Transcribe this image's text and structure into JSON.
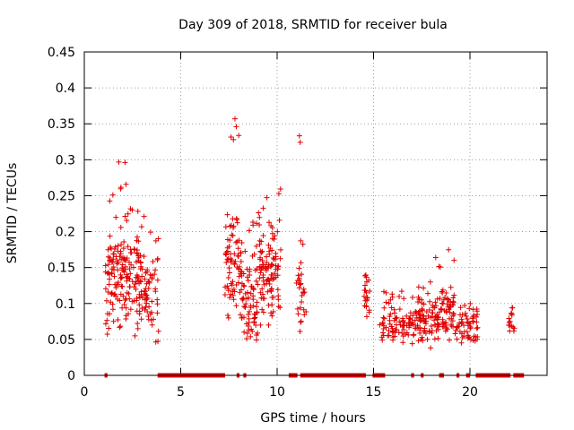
{
  "chart_data": {
    "type": "scatter",
    "title": "Day 309 of 2018, SRMTID for receiver bula",
    "xlabel": "GPS time / hours",
    "ylabel": "SRMTID / TECUs",
    "xlim": [
      0,
      24
    ],
    "ylim": [
      0,
      0.45
    ],
    "grid": true,
    "marker": "+",
    "series_color": "#e00000",
    "x_ticks": [
      {
        "value": 0,
        "label": "0"
      },
      {
        "value": 5,
        "label": "5"
      },
      {
        "value": 10,
        "label": "10"
      },
      {
        "value": 15,
        "label": "15"
      },
      {
        "value": 20,
        "label": "20"
      }
    ],
    "y_ticks": [
      {
        "value": 0,
        "label": "0"
      },
      {
        "value": 0.05,
        "label": "0.05"
      },
      {
        "value": 0.1,
        "label": "0.1"
      },
      {
        "value": 0.15,
        "label": "0.15"
      },
      {
        "value": 0.2,
        "label": "0.2"
      },
      {
        "value": 0.25,
        "label": "0.25"
      },
      {
        "value": 0.3,
        "label": "0.3"
      },
      {
        "value": 0.35,
        "label": "0.35"
      },
      {
        "value": 0.4,
        "label": "0.4"
      },
      {
        "value": 0.45,
        "label": "0.45"
      }
    ],
    "clusters": [
      {
        "x": [
          1.1,
          1.55
        ],
        "base": 0.13,
        "spread": 0.05,
        "lo": 0.045,
        "hi": 0.27,
        "n": 45
      },
      {
        "x": [
          1.55,
          2.3
        ],
        "base": 0.14,
        "spread": 0.06,
        "lo": 0.045,
        "hi": 0.3,
        "n": 75
      },
      {
        "x": [
          2.3,
          3.1
        ],
        "base": 0.13,
        "spread": 0.05,
        "lo": 0.055,
        "hi": 0.245,
        "n": 70
      },
      {
        "x": [
          3.1,
          3.85
        ],
        "base": 0.11,
        "spread": 0.04,
        "lo": 0.04,
        "hi": 0.22,
        "n": 55
      },
      {
        "x": [
          7.3,
          8.2
        ],
        "base": 0.15,
        "spread": 0.06,
        "lo": 0.08,
        "hi": 0.37,
        "n": 85
      },
      {
        "x": [
          8.2,
          9.0
        ],
        "base": 0.11,
        "spread": 0.045,
        "lo": 0.045,
        "hi": 0.225,
        "n": 70
      },
      {
        "x": [
          9.0,
          10.2
        ],
        "base": 0.15,
        "spread": 0.05,
        "lo": 0.07,
        "hi": 0.26,
        "n": 110
      },
      {
        "x": [
          11.0,
          11.5
        ],
        "base": 0.12,
        "spread": 0.04,
        "lo": 0.05,
        "hi": 0.345,
        "n": 30
      },
      {
        "x": [
          14.5,
          14.8
        ],
        "base": 0.1,
        "spread": 0.03,
        "lo": 0.06,
        "hi": 0.145,
        "n": 22
      },
      {
        "x": [
          15.3,
          17.0
        ],
        "base": 0.07,
        "spread": 0.02,
        "lo": 0.035,
        "hi": 0.12,
        "n": 80
      },
      {
        "x": [
          17.0,
          18.0
        ],
        "base": 0.075,
        "spread": 0.025,
        "lo": 0.025,
        "hi": 0.13,
        "n": 70
      },
      {
        "x": [
          18.0,
          19.2
        ],
        "base": 0.085,
        "spread": 0.025,
        "lo": 0.04,
        "hi": 0.175,
        "n": 90
      },
      {
        "x": [
          19.2,
          20.4
        ],
        "base": 0.07,
        "spread": 0.02,
        "lo": 0.04,
        "hi": 0.1,
        "n": 60
      },
      {
        "x": [
          22.0,
          22.3
        ],
        "base": 0.075,
        "spread": 0.012,
        "lo": 0.06,
        "hi": 0.1,
        "n": 15
      }
    ],
    "zero_ranges": [
      [
        1.05,
        1.2
      ],
      [
        3.8,
        7.3
      ],
      [
        7.9,
        8.05
      ],
      [
        8.25,
        8.4
      ],
      [
        10.6,
        11.05
      ],
      [
        11.2,
        14.6
      ],
      [
        14.95,
        15.6
      ],
      [
        16.95,
        17.1
      ],
      [
        17.45,
        17.6
      ],
      [
        18.4,
        18.65
      ],
      [
        19.3,
        19.45
      ],
      [
        19.8,
        20.0
      ],
      [
        20.3,
        22.1
      ],
      [
        22.25,
        22.8
      ]
    ]
  }
}
